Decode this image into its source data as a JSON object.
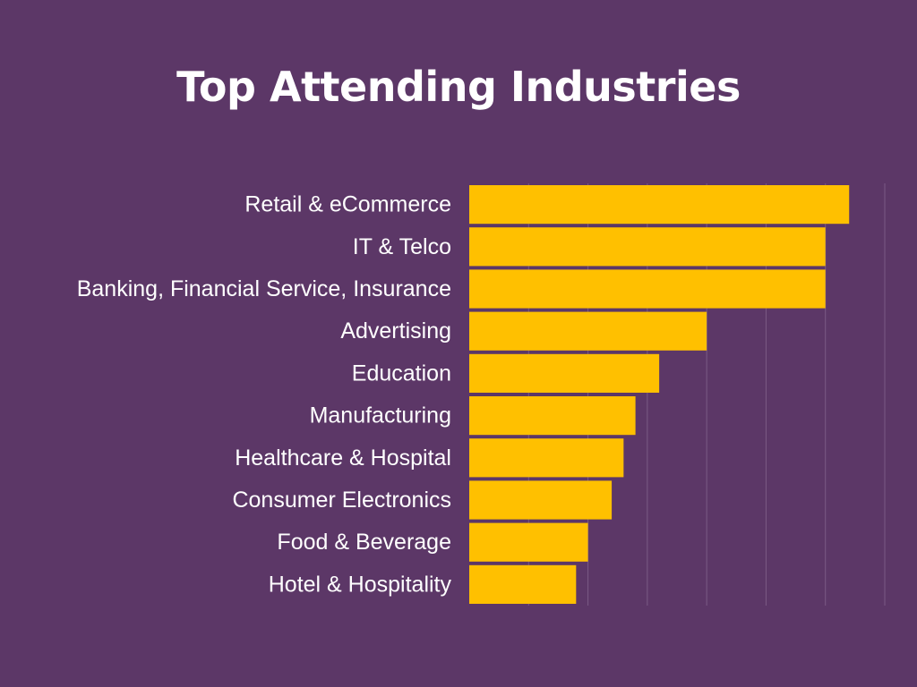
{
  "chart_data": {
    "type": "bar",
    "orientation": "horizontal",
    "title": "Top Attending Industries",
    "xlabel": "",
    "ylabel": "",
    "categories": [
      "Retail & eCommerce",
      "IT & Telco",
      "Banking, Financial Service, Insurance",
      "Advertising",
      "Education",
      "Manufacturing",
      "Healthcare & Hospital",
      "Consumer Electronics",
      "Food & Beverage",
      "Hotel & Hospitality"
    ],
    "values": [
      32,
      30,
      30,
      20,
      16,
      14,
      13,
      12,
      10,
      9
    ],
    "xlim": [
      0,
      35
    ],
    "grid": true,
    "legend": "none",
    "colors": {
      "background": "#5c3767",
      "bar": "#ffc000",
      "gridline": "#7a5a85",
      "text": "#ffffff"
    }
  }
}
